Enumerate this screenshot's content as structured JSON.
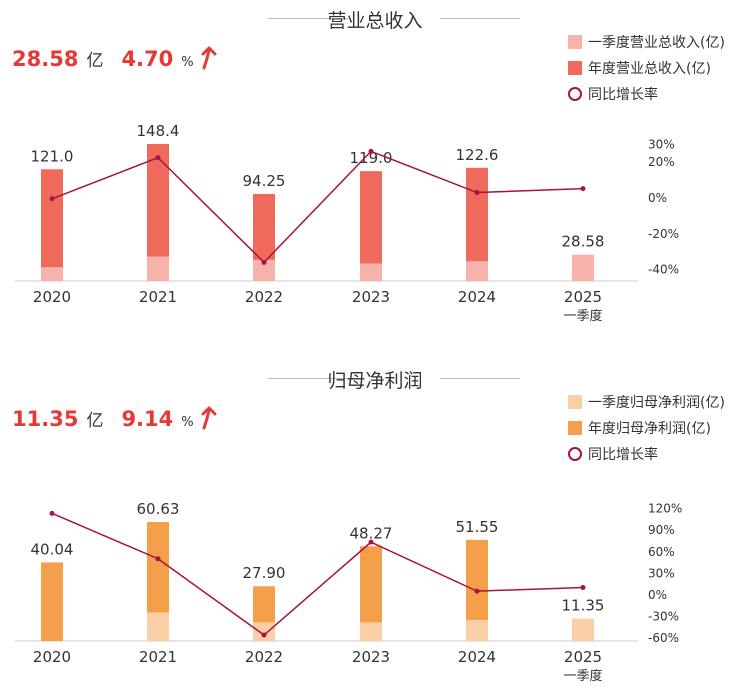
{
  "chart_data": [
    {
      "type": "bar",
      "title": "营业总收入",
      "headline": {
        "value": "28.58",
        "unit": "亿",
        "yoy": "4.70",
        "yoy_unit": "%"
      },
      "categories": [
        "2020",
        "2021",
        "2022",
        "2023",
        "2024",
        "2025"
      ],
      "category_sublabels": [
        "",
        "",
        "",
        "",
        "",
        "一季度"
      ],
      "series": [
        {
          "name": "一季度营业总收入(亿)",
          "values": [
            15,
            26.5,
            23,
            19,
            21.5,
            28.58
          ]
        },
        {
          "name": "年度营业总收入(亿)",
          "values": [
            121.0,
            148.4,
            94.25,
            119.0,
            122.6,
            null
          ]
        },
        {
          "name": "同比增长率",
          "values": [
            -1,
            22,
            -36.5,
            25.5,
            2.5,
            4.7
          ]
        }
      ],
      "data_labels": [
        "121.0",
        "148.4",
        "94.25",
        "119.0",
        "122.6",
        "28.58"
      ],
      "y2_ticks": [
        "30%",
        "20%",
        "0%",
        "-20%",
        "-40%"
      ],
      "y2_tick_values": [
        30,
        20,
        0,
        -20,
        -40
      ],
      "colors": {
        "quarter": "#f7b3ab",
        "annual": "#ef6a5a",
        "growth": "#a8123e"
      },
      "legend": "top-right"
    },
    {
      "type": "bar",
      "title": "归母净利润",
      "headline": {
        "value": "11.35",
        "unit": "亿",
        "yoy": "9.14",
        "yoy_unit": "%"
      },
      "categories": [
        "2020",
        "2021",
        "2022",
        "2023",
        "2024",
        "2025"
      ],
      "category_sublabels": [
        "",
        "",
        "",
        "",
        "",
        "一季度"
      ],
      "series": [
        {
          "name": "一季度归母净利润(亿)",
          "values": [
            0,
            14.5,
            9.5,
            9.5,
            10.8,
            11.35
          ]
        },
        {
          "name": "年度归母净利润(亿)",
          "values": [
            40.04,
            60.63,
            27.9,
            48.27,
            51.55,
            null
          ]
        },
        {
          "name": "同比增长率",
          "values": [
            112,
            49,
            -57,
            72,
            4,
            9
          ]
        }
      ],
      "data_labels": [
        "40.04",
        "60.63",
        "27.90",
        "48.27",
        "51.55",
        "11.35"
      ],
      "y2_ticks": [
        "120%",
        "90%",
        "60%",
        "30%",
        "0%",
        "-30%",
        "-60%"
      ],
      "y2_tick_values": [
        120,
        90,
        60,
        30,
        0,
        -30,
        -60
      ],
      "colors": {
        "quarter": "#fbcfa6",
        "annual": "#f4a04b",
        "growth": "#a8123e"
      },
      "legend": "top-right"
    }
  ]
}
